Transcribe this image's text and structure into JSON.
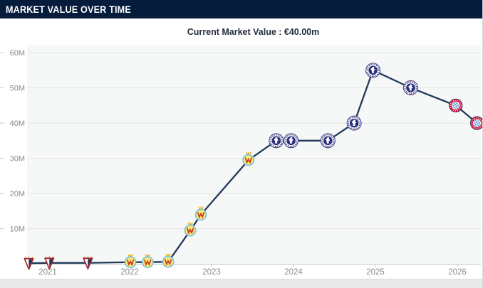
{
  "header": {
    "title": "MARKET VALUE OVER TIME"
  },
  "chart": {
    "subtitle": "Current Market Value : €40.00m"
  },
  "chart_data": {
    "type": "line",
    "title": "Market Value Over Time",
    "subtitle": "Current Market Value : €40.00m",
    "xlabel": "",
    "ylabel": "",
    "x_ticks": [
      "2021",
      "2022",
      "2023",
      "2024",
      "2025",
      "2026"
    ],
    "y_ticks": [
      "10M",
      "20M",
      "30M",
      "40M",
      "50M",
      "60M"
    ],
    "y_tick_values": [
      10,
      20,
      30,
      40,
      50,
      60
    ],
    "y_unit": "€ million",
    "ylim": [
      0,
      62
    ],
    "xlim": [
      2020.6,
      2026.35
    ],
    "grid": true,
    "legend_position": "none",
    "line_color": "#20395a",
    "series": [
      {
        "name": "Market value",
        "points": [
          {
            "date": "Oct 2020",
            "t": 2020.77,
            "value_m": 0.2,
            "club": "CD Mirandés"
          },
          {
            "date": "Jan 2021",
            "t": 2021.02,
            "value_m": 0.3,
            "club": "CD Mirandés"
          },
          {
            "date": "Jun 2021",
            "t": 2021.49,
            "value_m": 0.3,
            "club": "CD Mirandés"
          },
          {
            "date": "Jan 2022",
            "t": 2022.01,
            "value_m": 0.5,
            "club": "Villarreal CF"
          },
          {
            "date": "Mar 2022",
            "t": 2022.22,
            "value_m": 0.5,
            "club": "Villarreal CF"
          },
          {
            "date": "Jun 2022",
            "t": 2022.47,
            "value_m": 0.6,
            "club": "Villarreal CF"
          },
          {
            "date": "Sep 2022",
            "t": 2022.74,
            "value_m": 9.5,
            "club": "Villarreal CF"
          },
          {
            "date": "Nov 2022",
            "t": 2022.87,
            "value_m": 14.0,
            "club": "Villarreal CF"
          },
          {
            "date": "Jun 2023",
            "t": 2023.45,
            "value_m": 29.5,
            "club": "Villarreal CF"
          },
          {
            "date": "Oct 2023",
            "t": 2023.79,
            "value_m": 35.0,
            "club": "Chelsea FC"
          },
          {
            "date": "Dec 2023",
            "t": 2023.97,
            "value_m": 35.0,
            "club": "Chelsea FC"
          },
          {
            "date": "Jun 2024",
            "t": 2024.42,
            "value_m": 35.0,
            "club": "Chelsea FC"
          },
          {
            "date": "Oct 2024",
            "t": 2024.74,
            "value_m": 40.0,
            "club": "Chelsea FC"
          },
          {
            "date": "Dec 2024",
            "t": 2024.97,
            "value_m": 55.0,
            "club": "Chelsea FC"
          },
          {
            "date": "Jun 2025",
            "t": 2025.43,
            "value_m": 50.0,
            "club": "Chelsea FC"
          },
          {
            "date": "Dec 2025",
            "t": 2025.98,
            "value_m": 45.0,
            "club": "FC Bayern München"
          },
          {
            "date": "Mar 2026",
            "t": 2026.24,
            "value_m": 40.0,
            "club": "FC Bayern München"
          }
        ]
      }
    ],
    "clubs": {
      "CD Mirandés": {
        "icon": "mirandes-crest-icon"
      },
      "Villarreal CF": {
        "icon": "villarreal-crest-icon"
      },
      "Chelsea FC": {
        "icon": "chelsea-crest-icon"
      },
      "FC Bayern München": {
        "icon": "bayern-crest-icon"
      }
    }
  },
  "colors": {
    "header_bg": "#051c3d",
    "header_text": "#ffffff",
    "line": "#20395a",
    "plot_bg": "#f6f7f7",
    "grid": "#e4e4e4",
    "axis": "#c9c9c9",
    "axis_label": "#8c8c8c",
    "subtitle_text": "#25303c",
    "bottom_strip": "#e9e9e9"
  }
}
